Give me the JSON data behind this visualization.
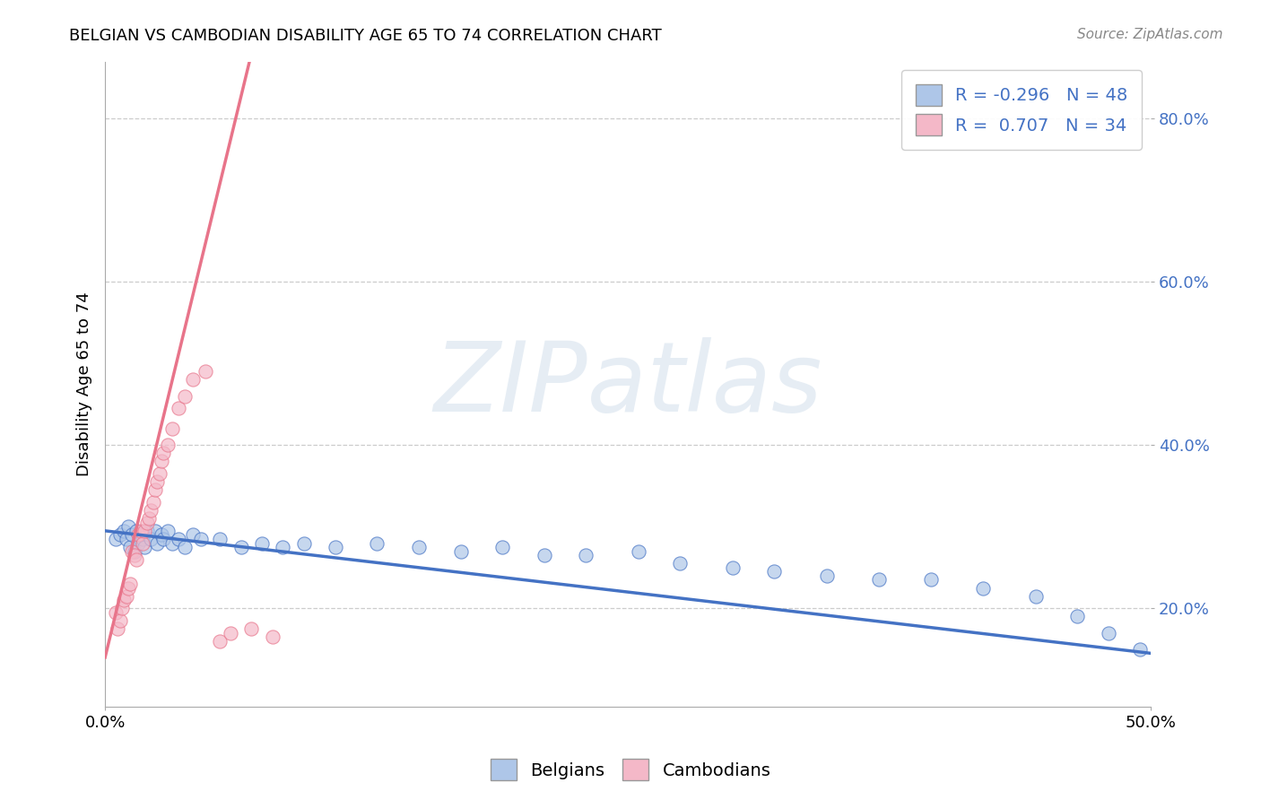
{
  "title": "BELGIAN VS CAMBODIAN DISABILITY AGE 65 TO 74 CORRELATION CHART",
  "source_text": "Source: ZipAtlas.com",
  "ylabel_label": "Disability Age 65 to 74",
  "xlim": [
    0.0,
    0.5
  ],
  "ylim": [
    0.08,
    0.87
  ],
  "yticks": [
    0.2,
    0.4,
    0.6,
    0.8
  ],
  "ytick_labels": [
    "20.0%",
    "40.0%",
    "60.0%",
    "80.0%"
  ],
  "belgians_R": -0.296,
  "belgians_N": 48,
  "cambodians_R": 0.707,
  "cambodians_N": 34,
  "belgian_color": "#aec6e8",
  "cambodian_color": "#f4b8c8",
  "belgian_line_color": "#4472c4",
  "cambodian_line_color": "#e8748a",
  "watermark": "ZIPatlas",
  "watermark_color_zi": "#c8d8ea",
  "watermark_color_atlas": "#b0c8d8",
  "title_fontsize": 13,
  "source_fontsize": 11,
  "tick_fontsize": 13,
  "ylabel_fontsize": 13,
  "bel_x": [
    0.005,
    0.007,
    0.009,
    0.01,
    0.011,
    0.012,
    0.013,
    0.014,
    0.015,
    0.016,
    0.018,
    0.019,
    0.02,
    0.022,
    0.024,
    0.025,
    0.027,
    0.028,
    0.03,
    0.032,
    0.035,
    0.038,
    0.042,
    0.046,
    0.055,
    0.065,
    0.075,
    0.085,
    0.095,
    0.11,
    0.13,
    0.15,
    0.17,
    0.19,
    0.21,
    0.23,
    0.255,
    0.275,
    0.3,
    0.32,
    0.345,
    0.37,
    0.395,
    0.42,
    0.445,
    0.465,
    0.48,
    0.495
  ],
  "bel_y": [
    0.285,
    0.29,
    0.295,
    0.285,
    0.3,
    0.275,
    0.29,
    0.27,
    0.295,
    0.28,
    0.285,
    0.275,
    0.295,
    0.285,
    0.295,
    0.28,
    0.29,
    0.285,
    0.295,
    0.28,
    0.285,
    0.275,
    0.29,
    0.285,
    0.285,
    0.275,
    0.28,
    0.275,
    0.28,
    0.275,
    0.28,
    0.275,
    0.27,
    0.275,
    0.265,
    0.265,
    0.27,
    0.255,
    0.25,
    0.245,
    0.24,
    0.235,
    0.235,
    0.225,
    0.215,
    0.19,
    0.17,
    0.15
  ],
  "cam_x": [
    0.005,
    0.006,
    0.007,
    0.008,
    0.009,
    0.01,
    0.011,
    0.012,
    0.013,
    0.014,
    0.015,
    0.016,
    0.017,
    0.018,
    0.019,
    0.02,
    0.021,
    0.022,
    0.023,
    0.024,
    0.025,
    0.026,
    0.027,
    0.028,
    0.03,
    0.032,
    0.035,
    0.038,
    0.042,
    0.048,
    0.055,
    0.06,
    0.07,
    0.08
  ],
  "cam_y": [
    0.195,
    0.175,
    0.185,
    0.2,
    0.21,
    0.215,
    0.225,
    0.23,
    0.27,
    0.265,
    0.26,
    0.29,
    0.295,
    0.28,
    0.295,
    0.305,
    0.31,
    0.32,
    0.33,
    0.345,
    0.355,
    0.365,
    0.38,
    0.39,
    0.4,
    0.42,
    0.445,
    0.46,
    0.48,
    0.49,
    0.16,
    0.17,
    0.175,
    0.165
  ]
}
